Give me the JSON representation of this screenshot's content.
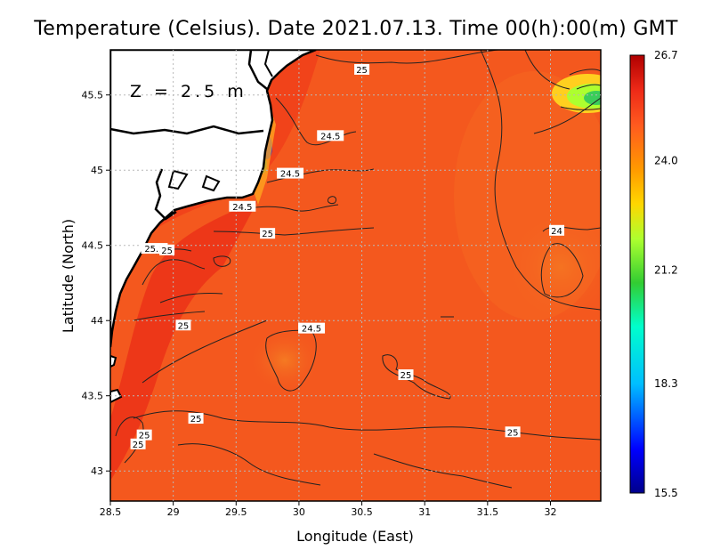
{
  "title": "Temperature (Celsius). Date 2021.07.13. Time 00(h):00(m)  GMT",
  "depth_label": "Z = 2.5 m",
  "x_axis": {
    "label": "Longitude (East)",
    "ticks": [
      "28.5",
      "29",
      "29.5",
      "30",
      "30.5",
      "31",
      "31.5",
      "32"
    ],
    "range": [
      28.5,
      32.4
    ]
  },
  "y_axis": {
    "label": "Latitude (North)",
    "ticks": [
      "45.5",
      "45",
      "44.5",
      "44",
      "43.5",
      "43"
    ],
    "range": [
      42.8,
      45.8
    ]
  },
  "colorbar": {
    "ticks": [
      "26.7",
      "24.0",
      "21.2",
      "18.3",
      "15.5"
    ],
    "min": 15.5,
    "max": 26.7,
    "colors": [
      "#00008b",
      "#0000ff",
      "#00bfff",
      "#00ffcc",
      "#32cd32",
      "#adff2f",
      "#ffd700",
      "#ff9900",
      "#ff5a1f",
      "#ee2a18",
      "#b00000"
    ]
  },
  "contour_labels": [
    {
      "text": "25",
      "lon": 30.5,
      "lat": 45.67
    },
    {
      "text": "24.5",
      "lon": 30.25,
      "lat": 45.23
    },
    {
      "text": "24.5",
      "lon": 29.93,
      "lat": 44.98
    },
    {
      "text": "24.5",
      "lon": 29.55,
      "lat": 44.76
    },
    {
      "text": "25",
      "lon": 29.75,
      "lat": 44.58
    },
    {
      "text": "24",
      "lon": 32.05,
      "lat": 44.6
    },
    {
      "text": "25.5",
      "lon": 28.85,
      "lat": 44.48
    },
    {
      "text": "25",
      "lon": 28.95,
      "lat": 44.47
    },
    {
      "text": "25",
      "lon": 29.08,
      "lat": 43.97
    },
    {
      "text": "24.5",
      "lon": 30.1,
      "lat": 43.95
    },
    {
      "text": "25",
      "lon": 30.85,
      "lat": 43.64
    },
    {
      "text": "25",
      "lon": 29.18,
      "lat": 43.35
    },
    {
      "text": "25",
      "lon": 31.7,
      "lat": 43.26
    },
    {
      "text": "25",
      "lon": 28.77,
      "lat": 43.24
    },
    {
      "text": "25",
      "lon": 28.72,
      "lat": 43.18
    }
  ]
}
